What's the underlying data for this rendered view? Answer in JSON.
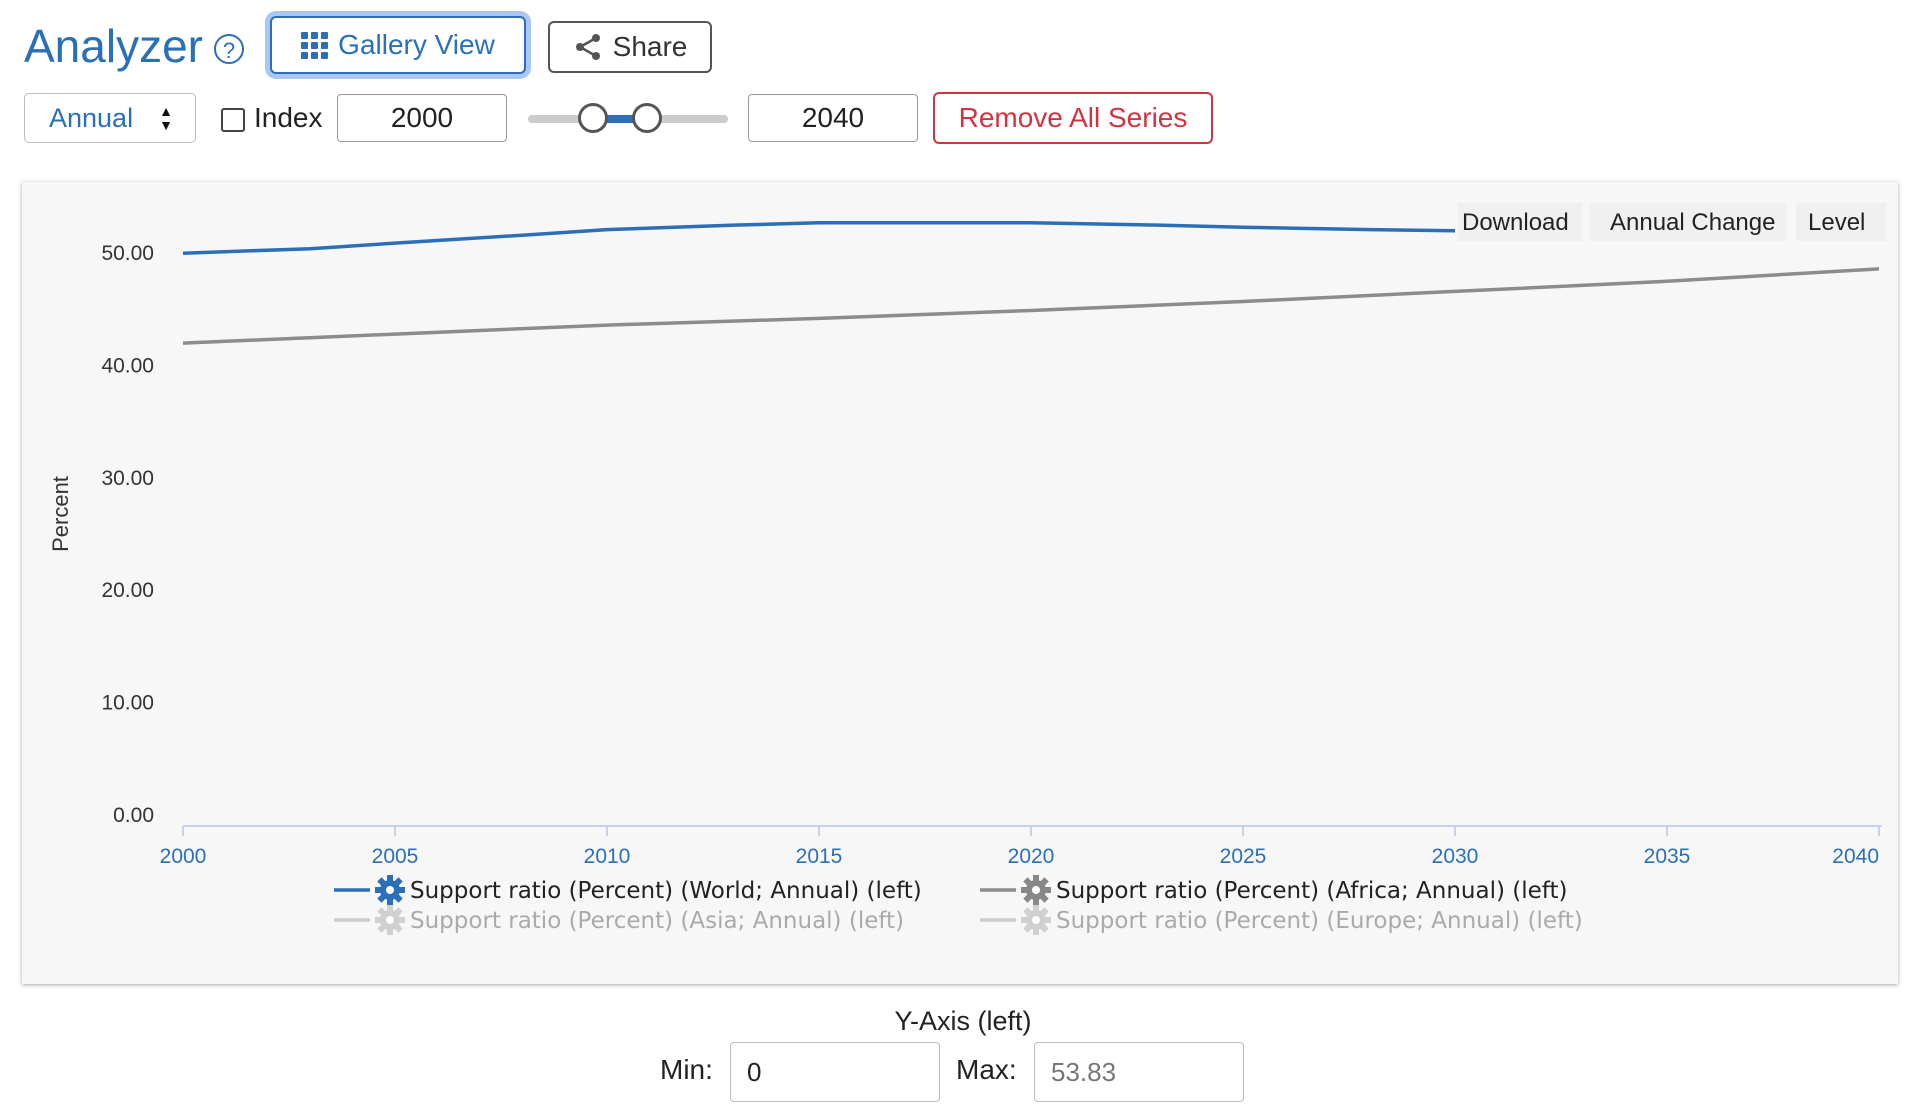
{
  "header": {
    "title": "Analyzer",
    "help_icon": "question-circle-icon",
    "gallery_button": "Gallery View",
    "share_button": "Share"
  },
  "controls": {
    "frequency": "Annual",
    "index_label": "Index",
    "index_checked": false,
    "start_year": "2000",
    "end_year": "2040",
    "remove_all": "Remove All Series"
  },
  "chart_menu": {
    "download": "Download",
    "annual_change": "Annual Change",
    "level": "Level"
  },
  "chart_data": {
    "type": "line",
    "xlabel": "",
    "ylabel": "Percent",
    "xlim": [
      2000,
      2040
    ],
    "ylim": [
      0,
      53.83
    ],
    "x_ticks": [
      "2000",
      "2005",
      "2010",
      "2015",
      "2020",
      "2025",
      "2030",
      "2035",
      "2040"
    ],
    "y_ticks": [
      "0.00",
      "10.00",
      "20.00",
      "30.00",
      "40.00",
      "50.00"
    ],
    "grid": false,
    "legend_position": "bottom",
    "series": [
      {
        "name": "Support ratio (Percent) (World; Annual) (left)",
        "color": "#2a6fb8",
        "active": true,
        "x": [
          2000,
          2003,
          2005,
          2008,
          2010,
          2013,
          2015,
          2018,
          2020,
          2023,
          2025,
          2028,
          2030
        ],
        "values": [
          49.9,
          50.3,
          50.8,
          51.5,
          52.0,
          52.4,
          52.6,
          52.6,
          52.6,
          52.4,
          52.2,
          52.0,
          51.9
        ]
      },
      {
        "name": "Support ratio (Percent) (Africa; Annual) (left)",
        "color": "#8c8c8c",
        "active": true,
        "x": [
          2000,
          2005,
          2010,
          2015,
          2020,
          2025,
          2030,
          2035,
          2040
        ],
        "values": [
          41.9,
          42.7,
          43.5,
          44.1,
          44.8,
          45.6,
          46.5,
          47.4,
          48.5
        ]
      },
      {
        "name": "Support ratio (Percent) (Asia; Annual) (left)",
        "color": "#cccccc",
        "active": false,
        "x": [],
        "values": []
      },
      {
        "name": "Support ratio (Percent) (Europe; Annual) (left)",
        "color": "#cccccc",
        "active": false,
        "x": [],
        "values": []
      }
    ]
  },
  "yaxis_controls": {
    "title": "Y-Axis (left)",
    "min_label": "Min:",
    "min_value": "0",
    "max_label": "Max:",
    "max_placeholder": "53.83"
  }
}
